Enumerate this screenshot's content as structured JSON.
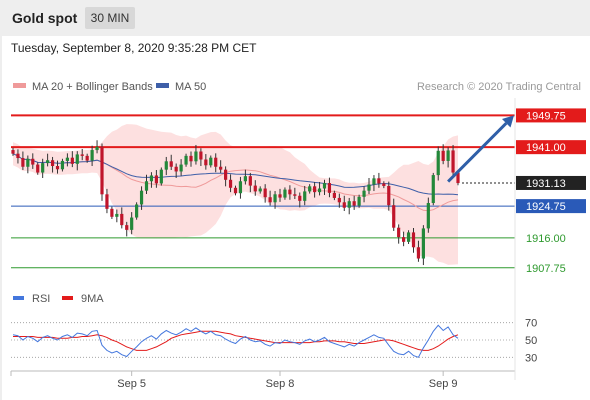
{
  "header": {
    "title": "Gold spot",
    "timeframe": "30 MIN"
  },
  "timestamp": "Tuesday, September 8, 2020 9:35:28 PM CET",
  "colors": {
    "resistance": "#e31b1b",
    "support": "#2a5ab8",
    "target": "#2f9a2f",
    "current": "#222222",
    "candle_up": "#23883a",
    "candle_down": "#c0152b",
    "bollinger_fill": "#fde0e0",
    "ma20": "#ef9a9a",
    "ma50": "#3e5fa8",
    "rsi": "#4477dd",
    "rsi_ma": "#e31b1b",
    "arrow": "#2f5fa8"
  },
  "chart_data": [
    {
      "type": "candlestick",
      "legend": [
        {
          "label": "MA 20 + Bollinger Bands",
          "color": "#ef9a9a"
        },
        {
          "label": "MA 50",
          "color": "#3e5fa8"
        }
      ],
      "watermark": "Research © 2020 Trading Central",
      "ylim": [
        1903,
        1954
      ],
      "x_ticks": [
        {
          "label": "Sep 5",
          "index": 24
        },
        {
          "label": "Sep 8",
          "index": 54
        },
        {
          "label": "Sep 9",
          "index": 87
        }
      ],
      "levels": [
        {
          "value": 1949.75,
          "label": "1949.75",
          "kind": "resistance",
          "style": "thick"
        },
        {
          "value": 1941.0,
          "label": "1941.00",
          "kind": "resistance",
          "style": "thick"
        },
        {
          "value": 1931.13,
          "label": "1931.13",
          "kind": "current",
          "style": "dotted"
        },
        {
          "value": 1924.75,
          "label": "1924.75",
          "kind": "support",
          "style": "thin"
        },
        {
          "value": 1916.0,
          "label": "1916.00",
          "kind": "target",
          "style": "thin"
        },
        {
          "value": 1907.75,
          "label": "1907.75",
          "kind": "target",
          "style": "thin"
        }
      ],
      "forecast_arrow": {
        "from": {
          "index": 88,
          "value": 1931.5
        },
        "to": {
          "index": 98,
          "value": 1949.75
        }
      },
      "series_close": [
        1939.2,
        1938.0,
        1935.6,
        1937.8,
        1936.2,
        1934.0,
        1936.6,
        1937.4,
        1935.8,
        1934.9,
        1937.2,
        1938.1,
        1936.4,
        1939.0,
        1938.6,
        1937.3,
        1940.2,
        1941.1,
        1928.0,
        1924.0,
        1921.8,
        1922.6,
        1919.5,
        1918.2,
        1921.6,
        1925.2,
        1929.0,
        1931.6,
        1933.2,
        1931.0,
        1934.8,
        1937.1,
        1935.6,
        1934.3,
        1936.2,
        1938.6,
        1937.1,
        1939.8,
        1937.6,
        1936.0,
        1938.1,
        1935.6,
        1934.8,
        1932.0,
        1929.8,
        1928.3,
        1931.6,
        1933.0,
        1930.4,
        1928.8,
        1929.6,
        1927.2,
        1925.8,
        1928.0,
        1927.1,
        1929.3,
        1928.0,
        1927.6,
        1926.2,
        1928.8,
        1930.2,
        1928.6,
        1929.6,
        1931.1,
        1928.4,
        1927.0,
        1925.8,
        1924.3,
        1926.1,
        1924.9,
        1927.3,
        1929.0,
        1930.7,
        1932.4,
        1931.0,
        1930.3,
        1925.0,
        1918.8,
        1916.2,
        1914.9,
        1917.5,
        1913.4,
        1910.3,
        1918.6,
        1925.6,
        1933.3,
        1940.0,
        1937.2,
        1940.1,
        1934.0,
        1931.1
      ],
      "rsi": {
        "legend": [
          {
            "label": "RSI",
            "color": "#4477dd"
          },
          {
            "label": "9MA",
            "color": "#e31b1b"
          }
        ],
        "ylim": [
          20,
          80
        ],
        "ticks": [
          "70",
          "50",
          "30"
        ],
        "rsi_values": [
          56,
          55,
          50,
          54,
          52,
          48,
          53,
          55,
          52,
          50,
          54,
          56,
          53,
          58,
          57,
          55,
          60,
          61,
          44,
          38,
          35,
          37,
          33,
          31,
          37,
          42,
          48,
          52,
          55,
          51,
          57,
          61,
          58,
          56,
          59,
          63,
          60,
          64,
          60,
          57,
          60,
          56,
          55,
          51,
          48,
          46,
          51,
          54,
          50,
          48,
          49,
          45,
          43,
          47,
          46,
          50,
          48,
          47,
          45,
          49,
          51,
          48,
          50,
          53,
          48,
          46,
          44,
          42,
          45,
          43,
          47,
          50,
          53,
          56,
          53,
          52,
          44,
          37,
          34,
          33,
          37,
          32,
          30,
          41,
          50,
          60,
          67,
          61,
          65,
          56,
          52
        ],
        "ma_values": [
          54,
          54,
          54,
          54,
          54,
          53,
          53,
          53,
          53,
          52,
          52,
          52,
          53,
          53,
          54,
          54,
          55,
          56,
          55,
          53,
          50,
          48,
          45,
          42,
          40,
          38,
          38,
          38,
          40,
          42,
          45,
          48,
          52,
          54,
          56,
          57,
          58,
          59,
          60,
          60,
          60,
          60,
          59,
          58,
          57,
          55,
          54,
          53,
          52,
          51,
          50,
          49,
          48,
          47,
          47,
          47,
          47,
          47,
          47,
          47,
          47,
          48,
          48,
          49,
          49,
          49,
          48,
          48,
          47,
          46,
          46,
          46,
          47,
          48,
          49,
          50,
          50,
          49,
          47,
          45,
          43,
          41,
          39,
          38,
          38,
          40,
          43,
          47,
          51,
          54,
          56
        ]
      }
    }
  ]
}
